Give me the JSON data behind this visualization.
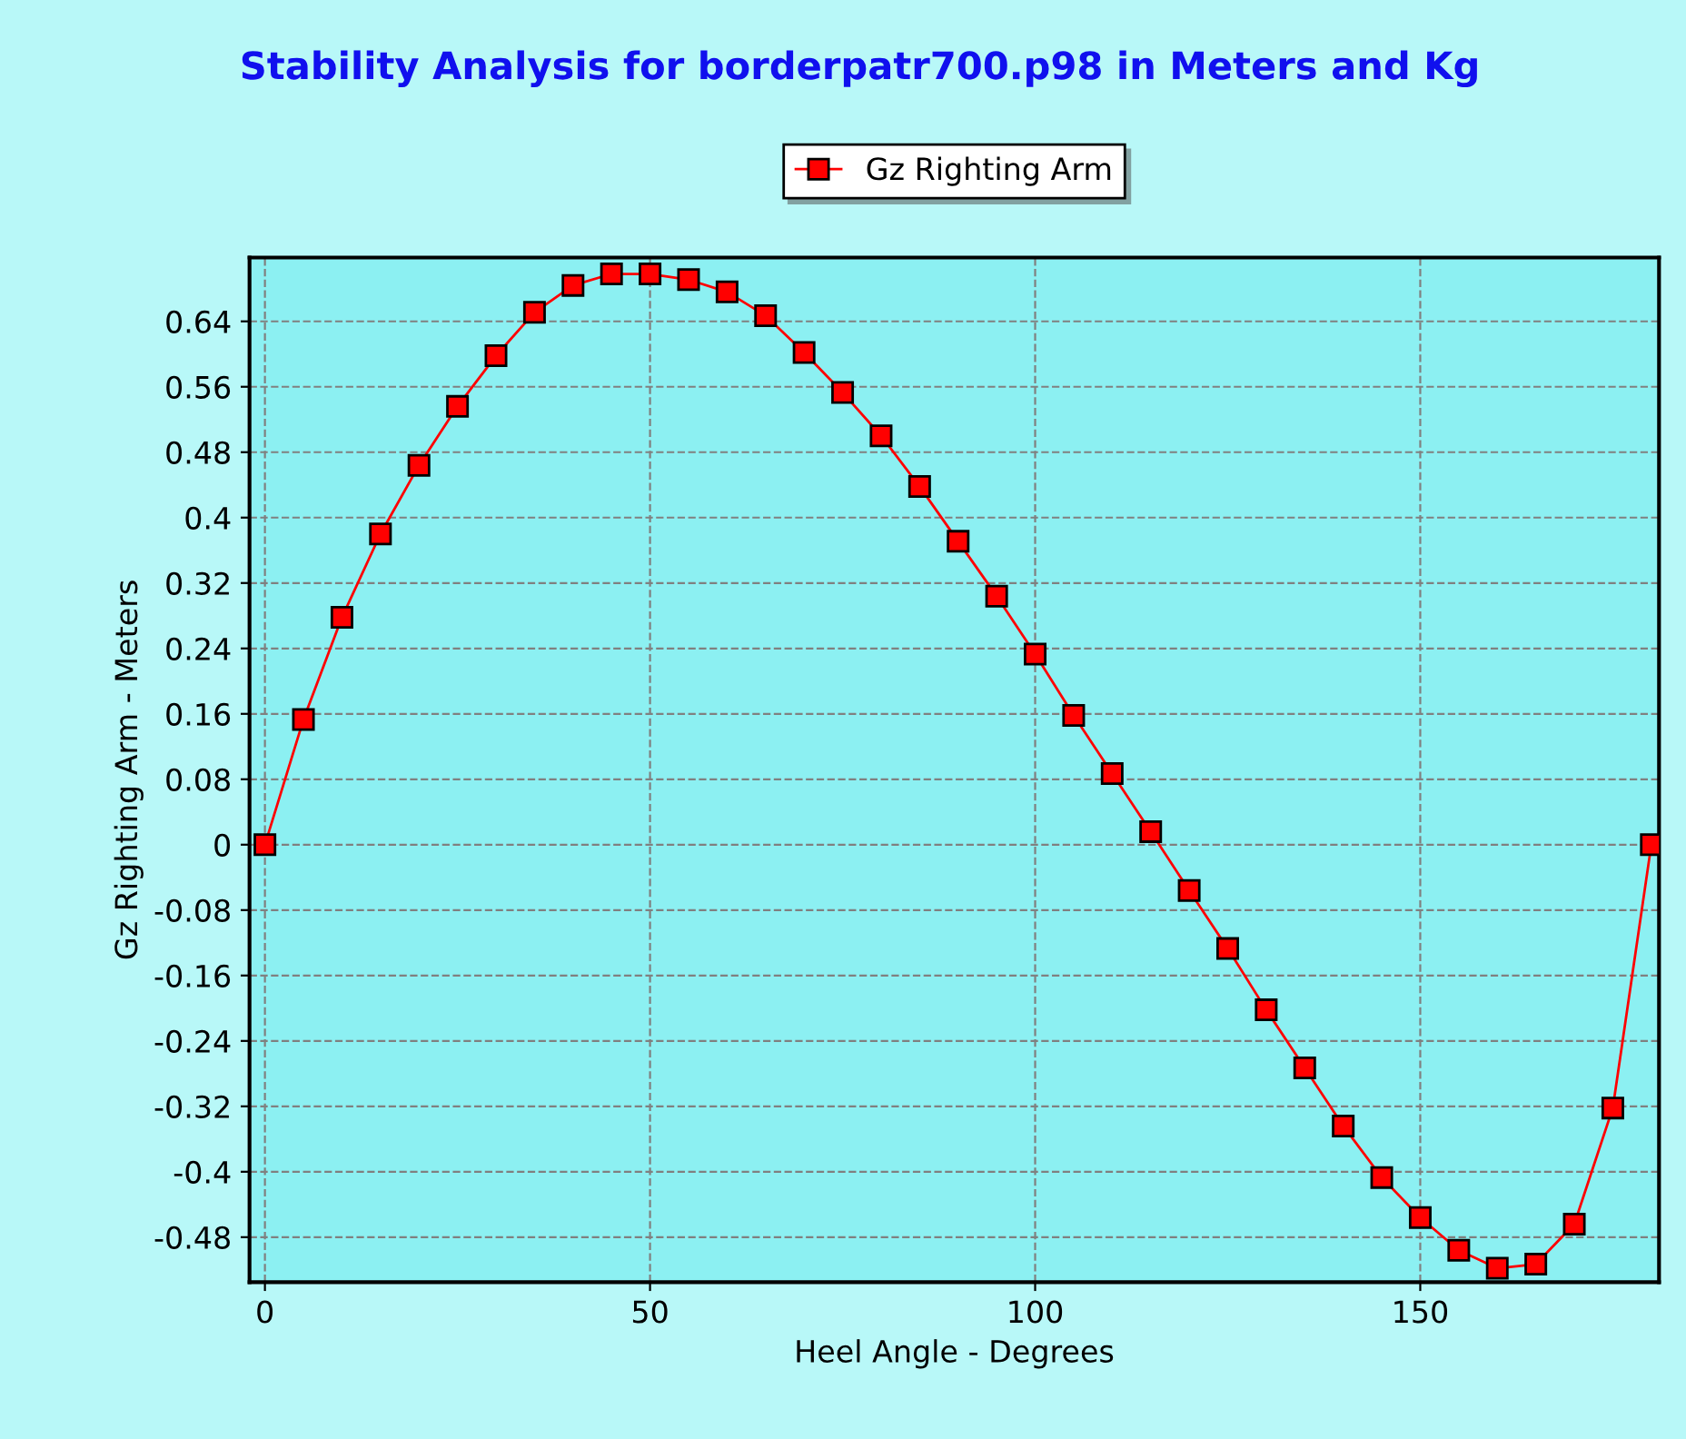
{
  "chart_data": {
    "type": "line",
    "title": "Stability Analysis for borderpatr700.p98 in Meters and Kg",
    "xlabel": "Heel Angle - Degrees",
    "ylabel": "Gz Righting Arm - Meters",
    "x": [
      0,
      5,
      10,
      15,
      20,
      25,
      30,
      35,
      40,
      45,
      50,
      55,
      60,
      65,
      70,
      75,
      80,
      85,
      90,
      95,
      100,
      105,
      110,
      115,
      120,
      125,
      130,
      135,
      140,
      145,
      150,
      155,
      160,
      165,
      170,
      175,
      180
    ],
    "series": [
      {
        "name": "Gz Righting Arm",
        "color": "#ff0000",
        "values": [
          0,
          0.153,
          0.278,
          0.38,
          0.464,
          0.536,
          0.598,
          0.651,
          0.684,
          0.698,
          0.698,
          0.691,
          0.676,
          0.647,
          0.602,
          0.553,
          0.5,
          0.438,
          0.371,
          0.304,
          0.233,
          0.158,
          0.087,
          0.016,
          -0.056,
          -0.127,
          -0.202,
          -0.273,
          -0.344,
          -0.407,
          -0.456,
          -0.496,
          -0.518,
          -0.513,
          -0.464,
          -0.322,
          0
        ]
      }
    ],
    "xlim": [
      -2,
      181
    ],
    "xticks": [
      0,
      50,
      100,
      150
    ],
    "ylim": [
      -0.535,
      0.718
    ],
    "yticks": [
      -0.48,
      -0.4,
      -0.32,
      -0.24,
      -0.16,
      -0.08,
      0,
      0.08,
      0.16,
      0.24,
      0.32,
      0.4,
      0.48,
      0.56,
      0.64
    ],
    "grid": true,
    "legend": "top",
    "marker": "square",
    "line_style": "solid"
  }
}
